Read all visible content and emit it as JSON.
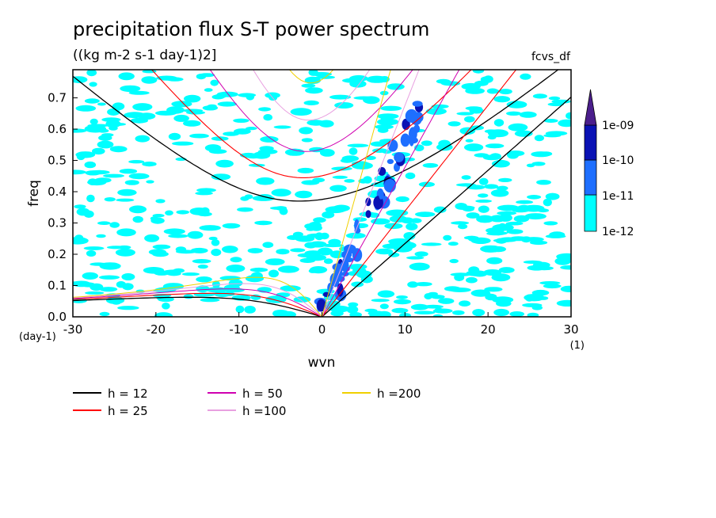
{
  "chart_data": {
    "type": "heatmap",
    "title": "precipitation flux S-T power spectrum",
    "subtitle": "((kg m-2 s-1 day-1)2]",
    "tag": "fcvs_df",
    "xlabel": "wvn",
    "ylabel": "freq",
    "x_unit": "(1)",
    "y_unit": "(day-1)",
    "xlim": [
      -30,
      30
    ],
    "ylim": [
      0,
      0.79
    ],
    "x_ticks": [
      "-30",
      "-20",
      "-10",
      "0",
      "10",
      "20",
      "30"
    ],
    "y_ticks": [
      "0.0",
      "0.1",
      "0.2",
      "0.3",
      "0.4",
      "0.5",
      "0.6",
      "0.7"
    ],
    "colorbar": {
      "levels": [
        "1e-12",
        "1e-11",
        "1e-10",
        "1e-09"
      ],
      "colors": [
        "#00ffff",
        "#1e6fff",
        "#0a12b4",
        "#4b1e8c"
      ]
    },
    "dispersion_curves": [
      {
        "name": "h = 12",
        "color": "#000000"
      },
      {
        "name": "h = 25",
        "color": "#ff0000"
      },
      {
        "name": "h = 50",
        "color": "#d000b0"
      },
      {
        "name": "h =100",
        "color": "#e8a0e0"
      },
      {
        "name": "h =200",
        "color": "#f0d000"
      }
    ]
  }
}
